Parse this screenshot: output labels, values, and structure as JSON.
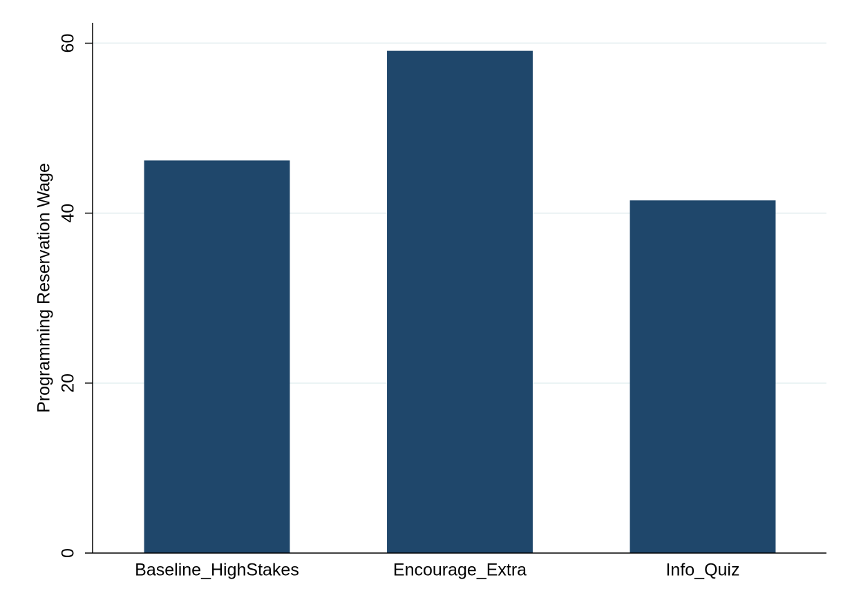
{
  "chart_data": {
    "type": "bar",
    "y_label": "Programming Reservation Wage",
    "categories": [
      "Baseline_HighStakes",
      "Encourage_Extra",
      "Info_Quiz"
    ],
    "values": [
      46.2,
      59.1,
      41.5
    ],
    "color": "#1f476b",
    "ylim": [
      0,
      62.4
    ],
    "yticks": [
      0,
      20,
      40,
      60
    ],
    "grid": true
  }
}
